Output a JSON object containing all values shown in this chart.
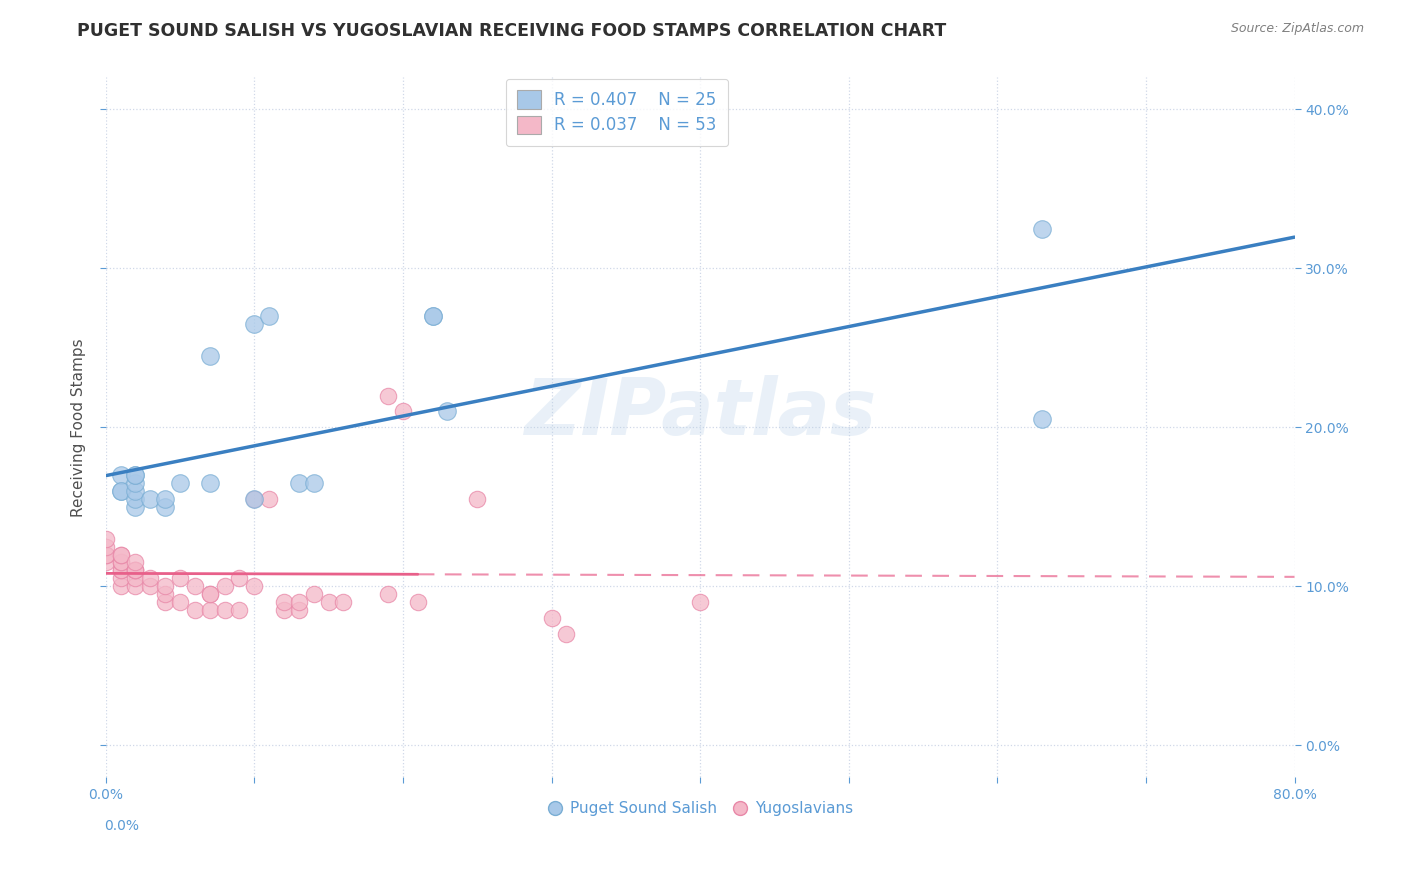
{
  "title": "PUGET SOUND SALISH VS YUGOSLAVIAN RECEIVING FOOD STAMPS CORRELATION CHART",
  "source": "Source: ZipAtlas.com",
  "ylabel": "Receiving Food Stamps",
  "xlim": [
    0.0,
    0.8
  ],
  "ylim": [
    -0.02,
    0.42
  ],
  "ylim_display": [
    0.0,
    0.4
  ],
  "watermark": "ZIPatlas",
  "blue_color": "#a8c8e8",
  "pink_color": "#f4b8c8",
  "blue_scatter_edge": "#7aaed4",
  "pink_scatter_edge": "#e888a8",
  "blue_line_color": "#3a7fc1",
  "pink_line_color": "#e8608a",
  "puget_x": [
    0.01,
    0.01,
    0.01,
    0.02,
    0.02,
    0.02,
    0.02,
    0.02,
    0.02,
    0.03,
    0.04,
    0.04,
    0.05,
    0.07,
    0.07,
    0.1,
    0.1,
    0.11,
    0.13,
    0.14,
    0.22,
    0.22,
    0.23,
    0.63,
    0.63
  ],
  "puget_y": [
    0.16,
    0.17,
    0.16,
    0.15,
    0.155,
    0.16,
    0.165,
    0.17,
    0.17,
    0.155,
    0.15,
    0.155,
    0.165,
    0.165,
    0.245,
    0.155,
    0.265,
    0.27,
    0.165,
    0.165,
    0.27,
    0.27,
    0.21,
    0.205,
    0.325
  ],
  "yugo_x": [
    0.0,
    0.0,
    0.0,
    0.0,
    0.0,
    0.01,
    0.01,
    0.01,
    0.01,
    0.01,
    0.01,
    0.01,
    0.01,
    0.02,
    0.02,
    0.02,
    0.02,
    0.02,
    0.02,
    0.03,
    0.03,
    0.04,
    0.04,
    0.04,
    0.05,
    0.05,
    0.06,
    0.06,
    0.07,
    0.07,
    0.07,
    0.08,
    0.08,
    0.09,
    0.09,
    0.1,
    0.1,
    0.11,
    0.12,
    0.12,
    0.13,
    0.13,
    0.14,
    0.15,
    0.16,
    0.19,
    0.19,
    0.2,
    0.21,
    0.25,
    0.3,
    0.31,
    0.4
  ],
  "yugo_y": [
    0.115,
    0.12,
    0.12,
    0.125,
    0.13,
    0.1,
    0.105,
    0.11,
    0.11,
    0.115,
    0.115,
    0.12,
    0.12,
    0.1,
    0.105,
    0.11,
    0.11,
    0.11,
    0.115,
    0.1,
    0.105,
    0.09,
    0.095,
    0.1,
    0.09,
    0.105,
    0.085,
    0.1,
    0.085,
    0.095,
    0.095,
    0.085,
    0.1,
    0.085,
    0.105,
    0.1,
    0.155,
    0.155,
    0.085,
    0.09,
    0.085,
    0.09,
    0.095,
    0.09,
    0.09,
    0.22,
    0.095,
    0.21,
    0.09,
    0.155,
    0.08,
    0.07,
    0.09
  ],
  "xticks": [
    0.0,
    0.1,
    0.2,
    0.3,
    0.4,
    0.5,
    0.6,
    0.7,
    0.8
  ],
  "yticks": [
    0.0,
    0.1,
    0.2,
    0.3,
    0.4
  ],
  "tick_color": "#5b9bd5",
  "grid_color": "#d0d8e8",
  "title_color": "#303030",
  "source_color": "#808080",
  "ylabel_color": "#505050"
}
